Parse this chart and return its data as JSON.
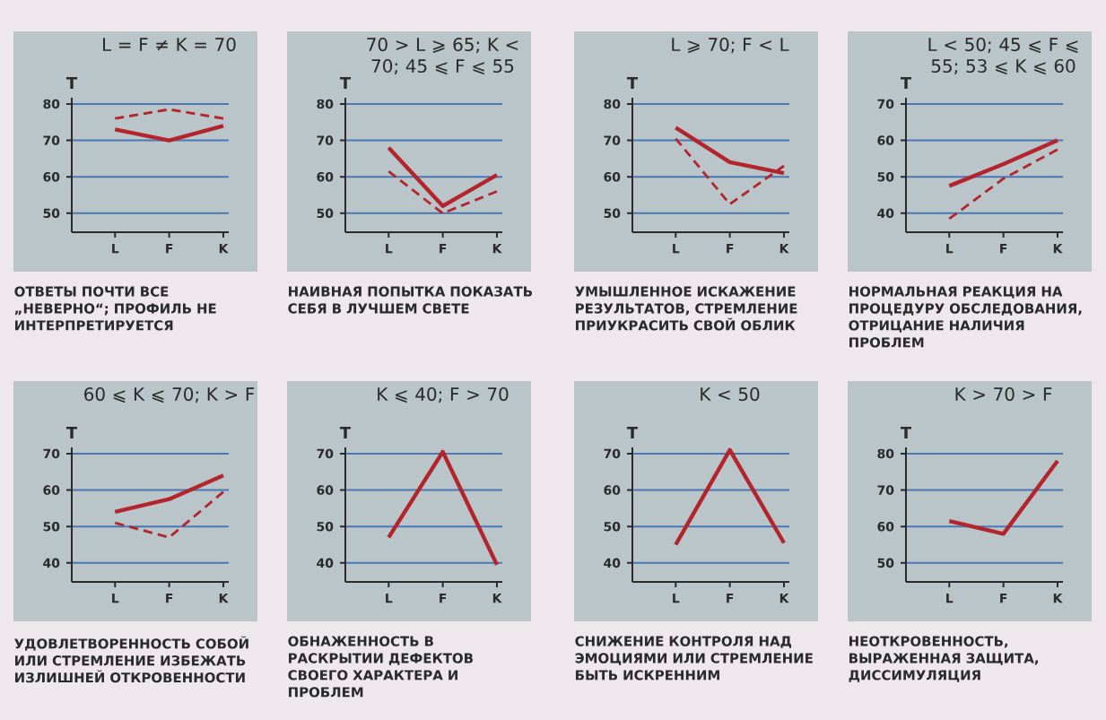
{
  "chart_data": [
    {
      "type": "line",
      "title": "L = F ≠ K = 70",
      "ylabel": "T",
      "categories": [
        "L",
        "F",
        "K"
      ],
      "ylim": [
        44.8,
        81.7
      ],
      "yticks": [
        50,
        60,
        70,
        80
      ],
      "grid": "y",
      "series": [
        {
          "color": "#b3242c",
          "line_style": "solid",
          "values": [
            73,
            70,
            74
          ]
        },
        {
          "color": "#b3242c",
          "line_style": "dashed",
          "values": [
            76,
            78.5,
            76
          ]
        }
      ],
      "annotations": [
        "ОТВЕТЫ ПОЧТИ ВСЕ „НЕВЕРНО“; ПРОФИЛЬ НЕ ИНТЕРПРЕТИРУЕТСЯ"
      ]
    },
    {
      "type": "line",
      "title": "70 > L ⩾ 65; K < 70; 45 ⩽ F ⩽ 55",
      "ylabel": "T",
      "categories": [
        "L",
        "F",
        "K"
      ],
      "ylim": [
        44.8,
        81.7
      ],
      "yticks": [
        50,
        60,
        70,
        80
      ],
      "grid": "y",
      "series": [
        {
          "color": "#b3242c",
          "line_style": "solid",
          "values": [
            68,
            52,
            60.5
          ]
        },
        {
          "color": "#b3242c",
          "line_style": "dashed",
          "values": [
            61.5,
            50,
            56
          ]
        }
      ],
      "annotations": [
        "НАИВНАЯ ПОПЫТКА ПОКАЗАТЬ СЕБЯ В ЛУЧШЕМ СВЕТЕ"
      ]
    },
    {
      "type": "line",
      "title": "L ⩾ 70; F < L",
      "ylabel": "T",
      "categories": [
        "L",
        "F",
        "K"
      ],
      "ylim": [
        44.8,
        81.7
      ],
      "yticks": [
        50,
        60,
        70,
        80
      ],
      "grid": "y",
      "series": [
        {
          "color": "#b3242c",
          "line_style": "solid",
          "values": [
            73.5,
            64,
            61
          ]
        },
        {
          "color": "#b3242c",
          "line_style": "dashed",
          "values": [
            70.5,
            52.5,
            63
          ]
        }
      ],
      "annotations": [
        "УМЫШЛЕННОЕ ИСКАЖЕНИЕ РЕЗУЛЬТАТОВ, СТРЕМЛЕНИЕ ПРИУКРАСИТЬ СВОЙ ОБЛИК"
      ]
    },
    {
      "type": "line",
      "title": "L < 50; 45 ⩽ F ⩽ 55; 53 ⩽ K ⩽ 60",
      "ylabel": "T",
      "categories": [
        "L",
        "F",
        "K"
      ],
      "ylim": [
        34.8,
        71.7
      ],
      "yticks": [
        40,
        50,
        60,
        70
      ],
      "grid": "y",
      "series": [
        {
          "color": "#b3242c",
          "line_style": "solid",
          "values": [
            47.5,
            53.5,
            60
          ]
        },
        {
          "color": "#b3242c",
          "line_style": "dashed",
          "values": [
            38.5,
            49.5,
            57.5
          ]
        }
      ],
      "annotations": [
        "НОРМАЛЬНАЯ РЕАКЦИЯ НА ПРОЦЕДУРУ ОБСЛЕДОВАНИЯ, ОТРИЦАНИЕ НАЛИЧИЯ ПРОБЛЕМ"
      ]
    },
    {
      "type": "line",
      "title": "60 ⩽ K ⩽ 70; K > F",
      "ylabel": "T",
      "categories": [
        "L",
        "F",
        "K"
      ],
      "ylim": [
        34.8,
        71.7
      ],
      "yticks": [
        40,
        50,
        60,
        70
      ],
      "grid": "y",
      "series": [
        {
          "color": "#b3242c",
          "line_style": "solid",
          "values": [
            54,
            57.5,
            64
          ]
        },
        {
          "color": "#b3242c",
          "line_style": "dashed",
          "values": [
            51,
            47,
            59.5
          ]
        }
      ],
      "annotations": [
        "УДОВЛЕТВОРЕННОСТЬ СОБОЙ ИЛИ СТРЕМЛЕНИЕ ИЗБЕЖАТЬ ИЗЛИШНЕЙ ОТКРОВЕННОСТИ"
      ]
    },
    {
      "type": "line",
      "title": "K ⩽ 40; F > 70",
      "ylabel": "T",
      "categories": [
        "L",
        "F",
        "K"
      ],
      "ylim": [
        34.8,
        71.7
      ],
      "yticks": [
        40,
        50,
        60,
        70
      ],
      "grid": "y",
      "series": [
        {
          "color": "#b3242c",
          "line_style": "solid",
          "values": [
            47,
            70.5,
            39.5
          ]
        }
      ],
      "annotations": [
        "ОБНАЖЕННОСТЬ В РАСКРЫТИИ ДЕФЕКТОВ СВОЕГО ХАРАКТЕРА И ПРОБЛЕМ"
      ]
    },
    {
      "type": "line",
      "title": "K < 50",
      "ylabel": "T",
      "categories": [
        "L",
        "F",
        "K"
      ],
      "ylim": [
        34.8,
        71.7
      ],
      "yticks": [
        40,
        50,
        60,
        70
      ],
      "grid": "y",
      "series": [
        {
          "color": "#b3242c",
          "line_style": "solid",
          "values": [
            45,
            71,
            45.5
          ]
        }
      ],
      "annotations": [
        "СНИЖЕНИЕ КОНТРОЛЯ НАД ЭМОЦИЯМИ ИЛИ СТРЕМЛЕНИЕ БЫТЬ ИСКРЕННИМ"
      ]
    },
    {
      "type": "line",
      "title": "K > 70 > F",
      "ylabel": "T",
      "categories": [
        "L",
        "F",
        "K"
      ],
      "ylim": [
        44.8,
        81.7
      ],
      "yticks": [
        50,
        60,
        70,
        80
      ],
      "grid": "y",
      "series": [
        {
          "color": "#b3242c",
          "line_style": "solid",
          "values": [
            61.5,
            58,
            78
          ]
        }
      ],
      "annotations": [
        "НЕОТКРОВЕННОСТЬ, ВЫРАЖЕННАЯ ЗАЩИТА, ДИССИМУЛЯЦИЯ"
      ]
    }
  ]
}
